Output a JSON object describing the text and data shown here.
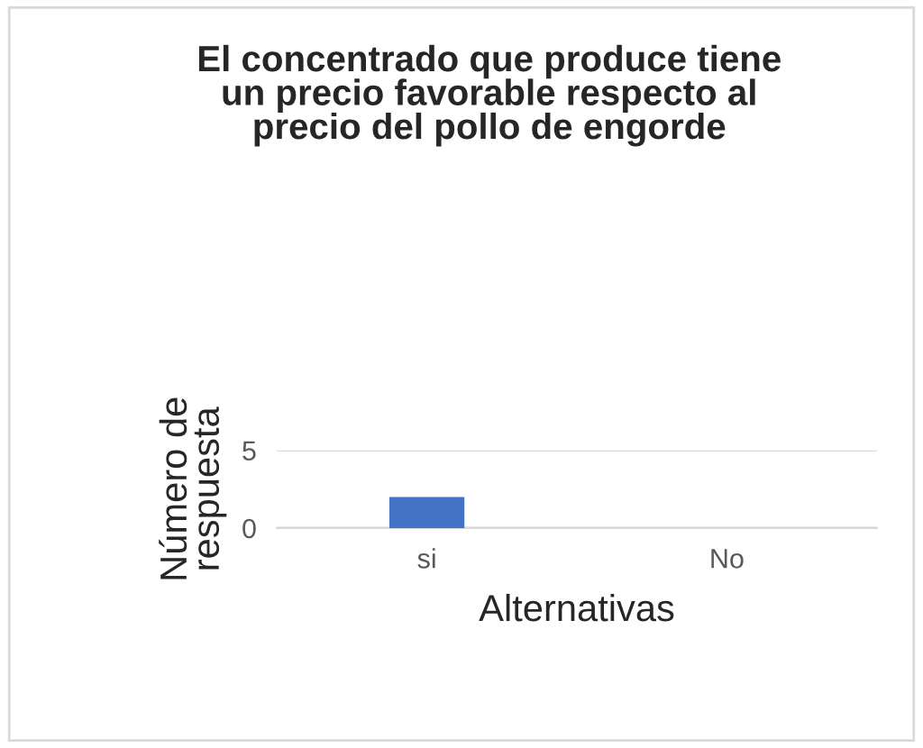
{
  "chart_data": {
    "type": "bar",
    "title": "El concentrado que produce tiene un precio favorable respecto al precio del pollo de engorde",
    "xlabel": "Alternativas",
    "ylabel": "Número de respuesta",
    "categories": [
      "si",
      "No"
    ],
    "values": [
      2,
      0
    ],
    "color": "#4472c4",
    "ylim": [
      0,
      5
    ],
    "yticks": [
      0,
      5
    ],
    "grid": "y"
  }
}
